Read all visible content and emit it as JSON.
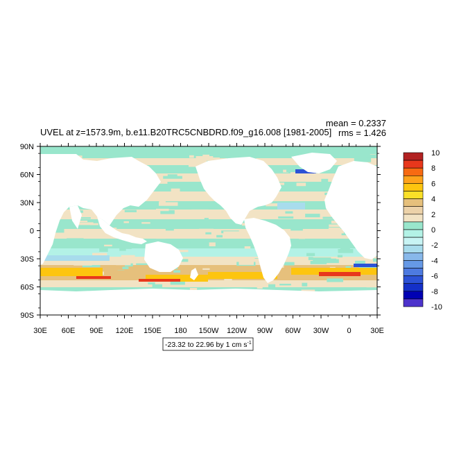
{
  "title": "UVEL at z=1573.9m, b.e11.B20TRC5CNBDRD.f09_g16.008 [1981-2005]",
  "stats": {
    "mean": "mean = 0.2337",
    "rms": "rms = 1.426"
  },
  "range_box": {
    "text": "-23.32 to 22.96 by 1 cm s",
    "superscript": "-1"
  },
  "map": {
    "lat_ticks": [
      "90N",
      "60N",
      "30N",
      "0",
      "30S",
      "60S",
      "90S"
    ],
    "lon_ticks": [
      "30E",
      "60E",
      "90E",
      "120E",
      "150E",
      "180",
      "150W",
      "120W",
      "90W",
      "60W",
      "30W",
      "0",
      "30E"
    ]
  },
  "colorbar": {
    "labels": [
      "10",
      "8",
      "6",
      "4",
      "2",
      "0",
      "-2",
      "-4",
      "-6",
      "-8",
      "-10"
    ],
    "colors": [
      "#b22222",
      "#e8371c",
      "#f76a12",
      "#fea21b",
      "#fdc50f",
      "#fbe028",
      "#e6c07c",
      "#ecd2a9",
      "#f2e3c4",
      "#99e6cc",
      "#b3f2e6",
      "#c8f4f4",
      "#a8dcec",
      "#88b8ea",
      "#6699e6",
      "#4d7ae0",
      "#2c52d6",
      "#1430c8",
      "#0000b3",
      "#4d33cc"
    ]
  },
  "palette": {
    "positive_weak": "#f2e3c4",
    "positive_mid": "#e6c07c",
    "positive_strong": "#fdc50f",
    "positive_max": "#e8371c",
    "negative_weak": "#99e6cc",
    "negative_mid": "#b3f2e6",
    "negative_strong": "#a8dcec",
    "negative_max": "#2c52d6",
    "land": "#ffffff"
  }
}
